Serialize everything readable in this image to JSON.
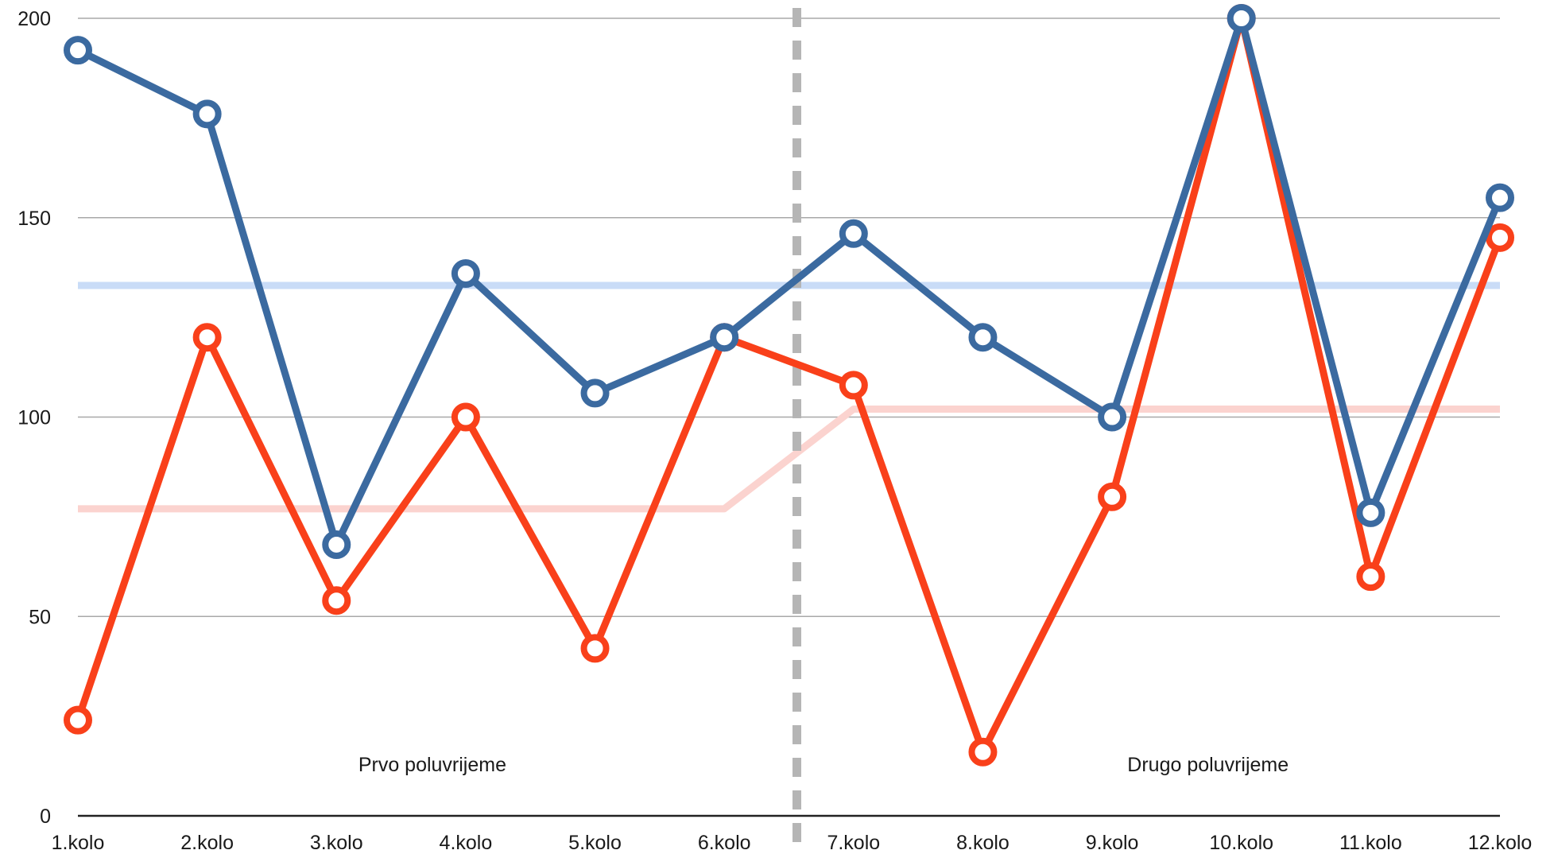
{
  "chart_data": {
    "type": "line",
    "title": "",
    "xlabel": "",
    "ylabel": "",
    "categories": [
      "1.kolo",
      "2.kolo",
      "3.kolo",
      "4.kolo",
      "5.kolo",
      "6.kolo",
      "7.kolo",
      "8.kolo",
      "9.kolo",
      "10.kolo",
      "11.kolo",
      "12.kolo"
    ],
    "ylim": [
      0,
      200
    ],
    "yticks": [
      "0",
      "50",
      "100",
      "150",
      "200"
    ],
    "grid": true,
    "legend": "none",
    "series": [
      {
        "color": "#3b6aa0",
        "values": [
          192,
          176,
          68,
          136,
          106,
          120,
          146,
          120,
          100,
          200,
          76,
          155
        ]
      },
      {
        "color": "#f9401a",
        "values": [
          24,
          120,
          54,
          100,
          42,
          120,
          108,
          16,
          80,
          200,
          60,
          145
        ]
      }
    ],
    "reference_lines": [
      {
        "color": "#c9dcf7",
        "values": [
          133,
          133,
          133,
          133,
          133,
          133,
          133,
          133,
          133,
          133,
          133,
          133
        ]
      },
      {
        "color": "#fbd3cf",
        "values": [
          77,
          77,
          77,
          77,
          77,
          77,
          102,
          102,
          102,
          102,
          102,
          102
        ]
      }
    ],
    "divider": {
      "between": [
        "6.kolo",
        "7.kolo"
      ],
      "color": "#b5b5b5",
      "style": "dashed"
    },
    "annotations": [
      {
        "text": "Prvo poluvrijeme",
        "x_category": "4.kolo",
        "y": 13
      },
      {
        "text": "Drugo poluvrijeme",
        "x_category": "10.kolo",
        "y": 13
      }
    ]
  }
}
